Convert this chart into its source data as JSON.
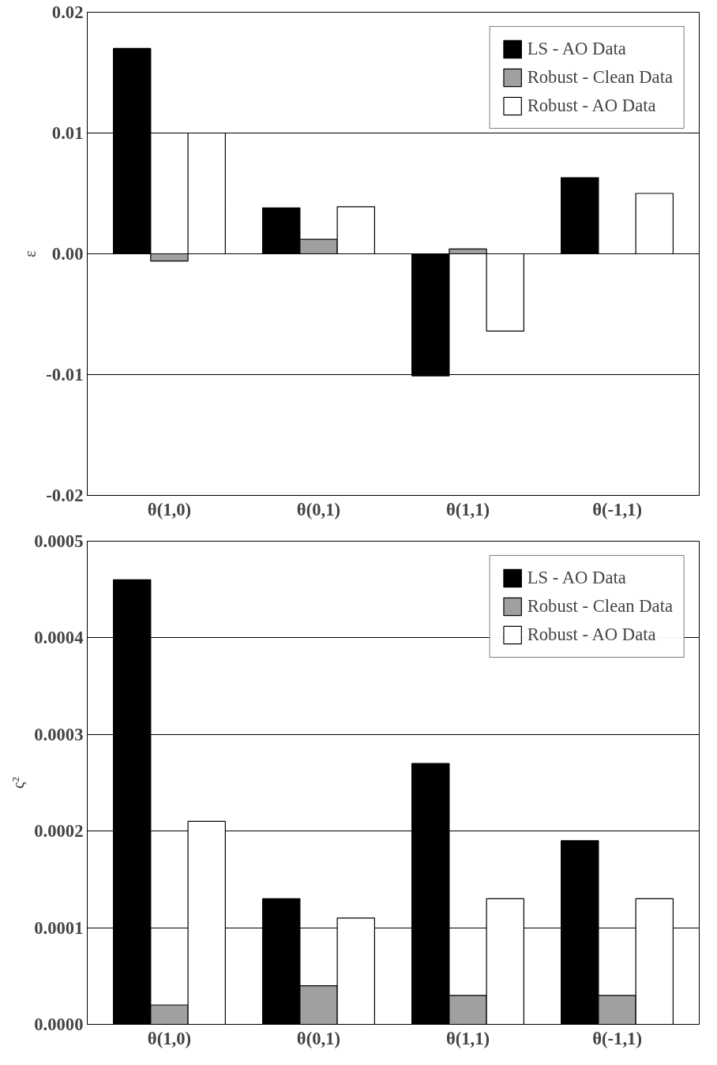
{
  "chart_data": [
    {
      "type": "bar",
      "ylabel": "ε",
      "categories": [
        "θ(1,0)",
        "θ(0,1)",
        "θ(1,1)",
        "θ(-1,1)"
      ],
      "series": [
        {
          "name": "LS - AO Data",
          "color": "#000000",
          "values": [
            0.017,
            0.0038,
            -0.0101,
            0.0063
          ]
        },
        {
          "name": "Robust - Clean Data",
          "color": "#a0a0a0",
          "values": [
            -0.0006,
            0.0012,
            0.0004,
            null
          ]
        },
        {
          "name": "Robust - AO Data",
          "color": "#ffffff",
          "values": [
            0.01,
            0.0039,
            -0.0064,
            0.005
          ]
        }
      ],
      "ylim": [
        -0.02,
        0.02
      ],
      "yticks": [
        -0.02,
        -0.01,
        {
          "value": 0,
          "label": "0.00"
        },
        0.01,
        0.02
      ],
      "grid": "y",
      "legend": "top right"
    },
    {
      "type": "bar",
      "ylabel": "ς²",
      "categories": [
        "θ(1,0)",
        "θ(0,1)",
        "θ(1,1)",
        "θ(-1,1)"
      ],
      "series": [
        {
          "name": "LS - AO Data",
          "color": "#000000",
          "values": [
            0.00046,
            0.00013,
            0.00027,
            0.00019
          ]
        },
        {
          "name": "Robust - Clean Data",
          "color": "#a0a0a0",
          "values": [
            2e-05,
            4e-05,
            3e-05,
            3e-05
          ]
        },
        {
          "name": "Robust - AO Data",
          "color": "#ffffff",
          "values": [
            0.00021,
            0.00011,
            0.00013,
            0.00013
          ]
        }
      ],
      "ylim": [
        0,
        0.0005
      ],
      "yticks": [
        {
          "value": 0,
          "label": "0.0000"
        },
        0.0001,
        0.0002,
        0.0003,
        0.0004,
        0.0005
      ],
      "grid": "y",
      "legend": "top right"
    }
  ]
}
